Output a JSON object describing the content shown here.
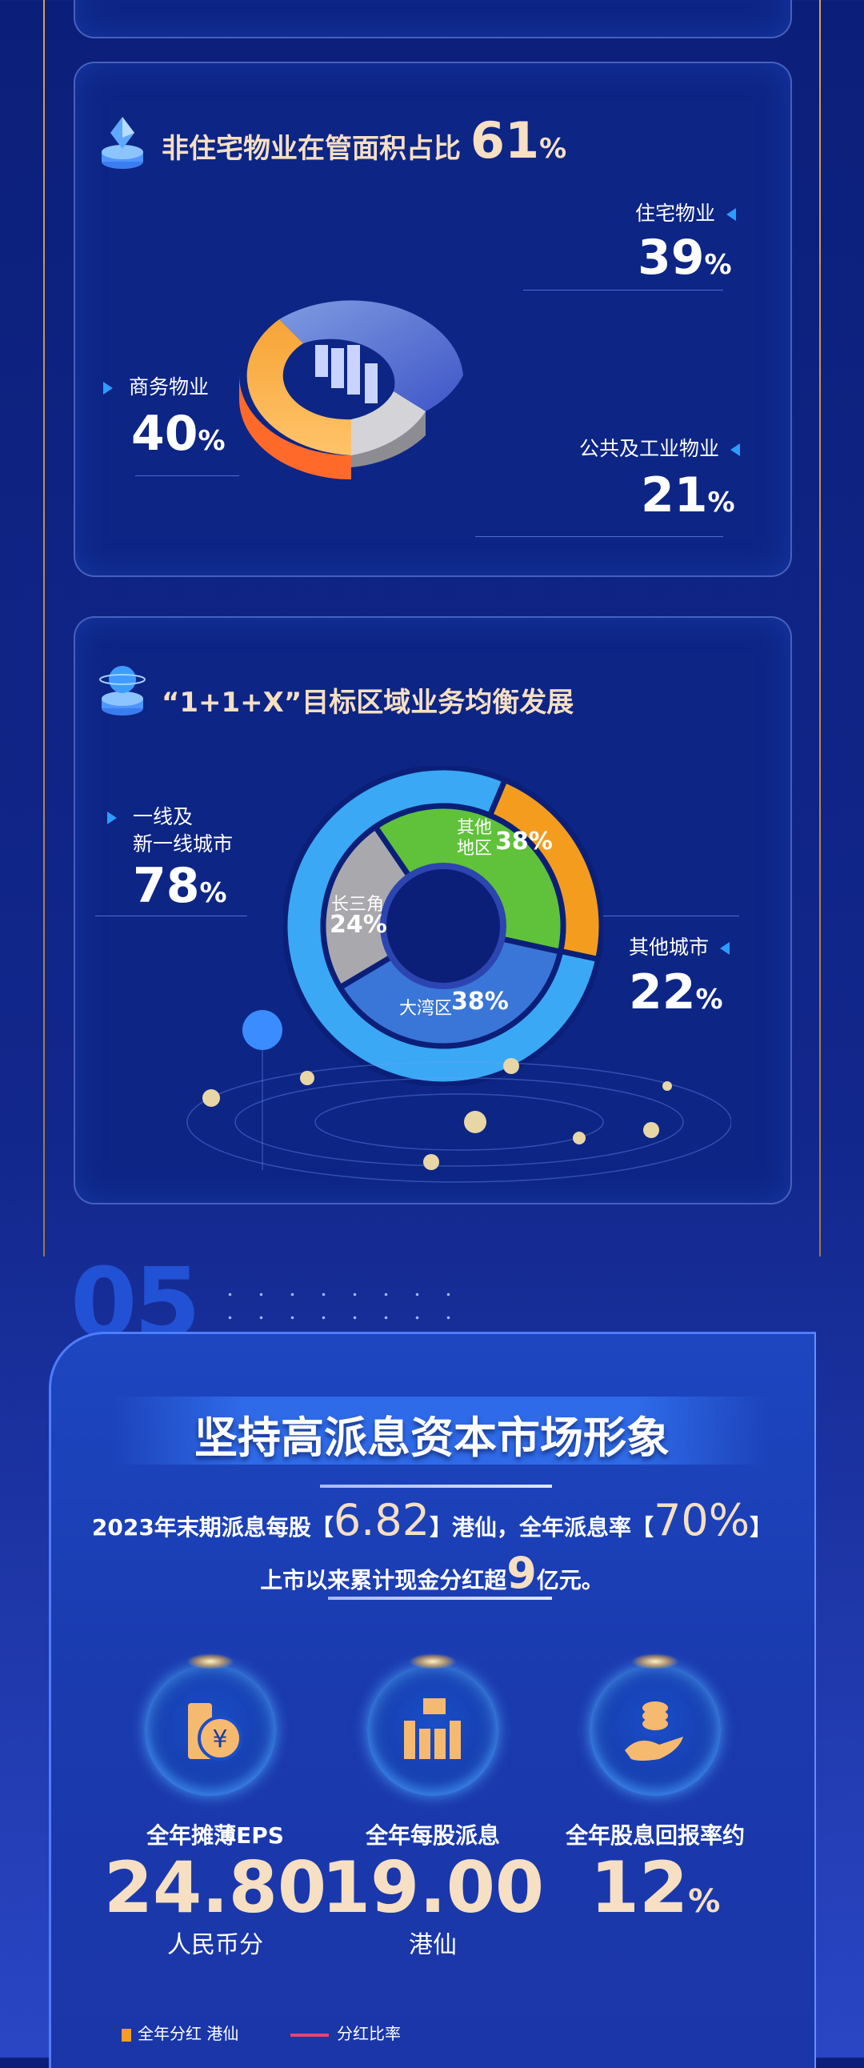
{
  "card1": {
    "title": "非住宅物业在管面积占比",
    "title_value": "61",
    "title_unit": "%",
    "icon": "diamond-pedestal-icon",
    "segments": [
      {
        "label": "住宅物业",
        "value": "39",
        "unit": "%",
        "color": "#5b7fd8"
      },
      {
        "label": "商务物业",
        "value": "40",
        "unit": "%",
        "color": "#f7a436"
      },
      {
        "label": "公共及工业物业",
        "value": "21",
        "unit": "%",
        "color": "#c8c8cc"
      }
    ]
  },
  "card2": {
    "title": "“1+1+X”目标区域业务均衡发展",
    "icon": "globe-pedestal-icon",
    "outer": [
      {
        "label_line1": "一线及",
        "label_line2": "新一线城市",
        "value": "78",
        "unit": "%",
        "color": "#3aa8f5"
      },
      {
        "label": "其他城市",
        "value": "22",
        "unit": "%",
        "color": "#f39c1e"
      }
    ],
    "inner": [
      {
        "label_line1": "其他",
        "label_line2": "地区",
        "value": "38%",
        "color": "#5fc23a"
      },
      {
        "label": "长三角",
        "value": "24%",
        "color": "#a9a9ad"
      },
      {
        "label": "大湾区",
        "value": "38%",
        "color": "#3a76d8"
      }
    ]
  },
  "section": {
    "number": "05",
    "title": "坚持高派息资本市场形象",
    "desc1_a": "2023年末期派息每股【",
    "desc1_v1": "6.82",
    "desc1_b": "】港仙，全年派息率【",
    "desc1_v2": "70%",
    "desc1_c": "】",
    "desc2_a": "上市以来累计现金分红超",
    "desc2_v": "9",
    "desc2_b": "亿元。"
  },
  "kpis": [
    {
      "icon": "yen-coins-icon",
      "label": "全年摊薄EPS",
      "value": "24.80",
      "unit": "人民币分"
    },
    {
      "icon": "money-bar-chart-icon",
      "label": "全年每股派息",
      "value": "19.00",
      "unit": "港仙"
    },
    {
      "icon": "hand-coins-icon",
      "label": "全年股息回报率约",
      "value": "12",
      "suffix": "%"
    }
  ],
  "legend": {
    "item1": "全年分红 港仙",
    "item2": "分红比率",
    "color1": "#f39c2a",
    "color2": "#e0457a"
  }
}
